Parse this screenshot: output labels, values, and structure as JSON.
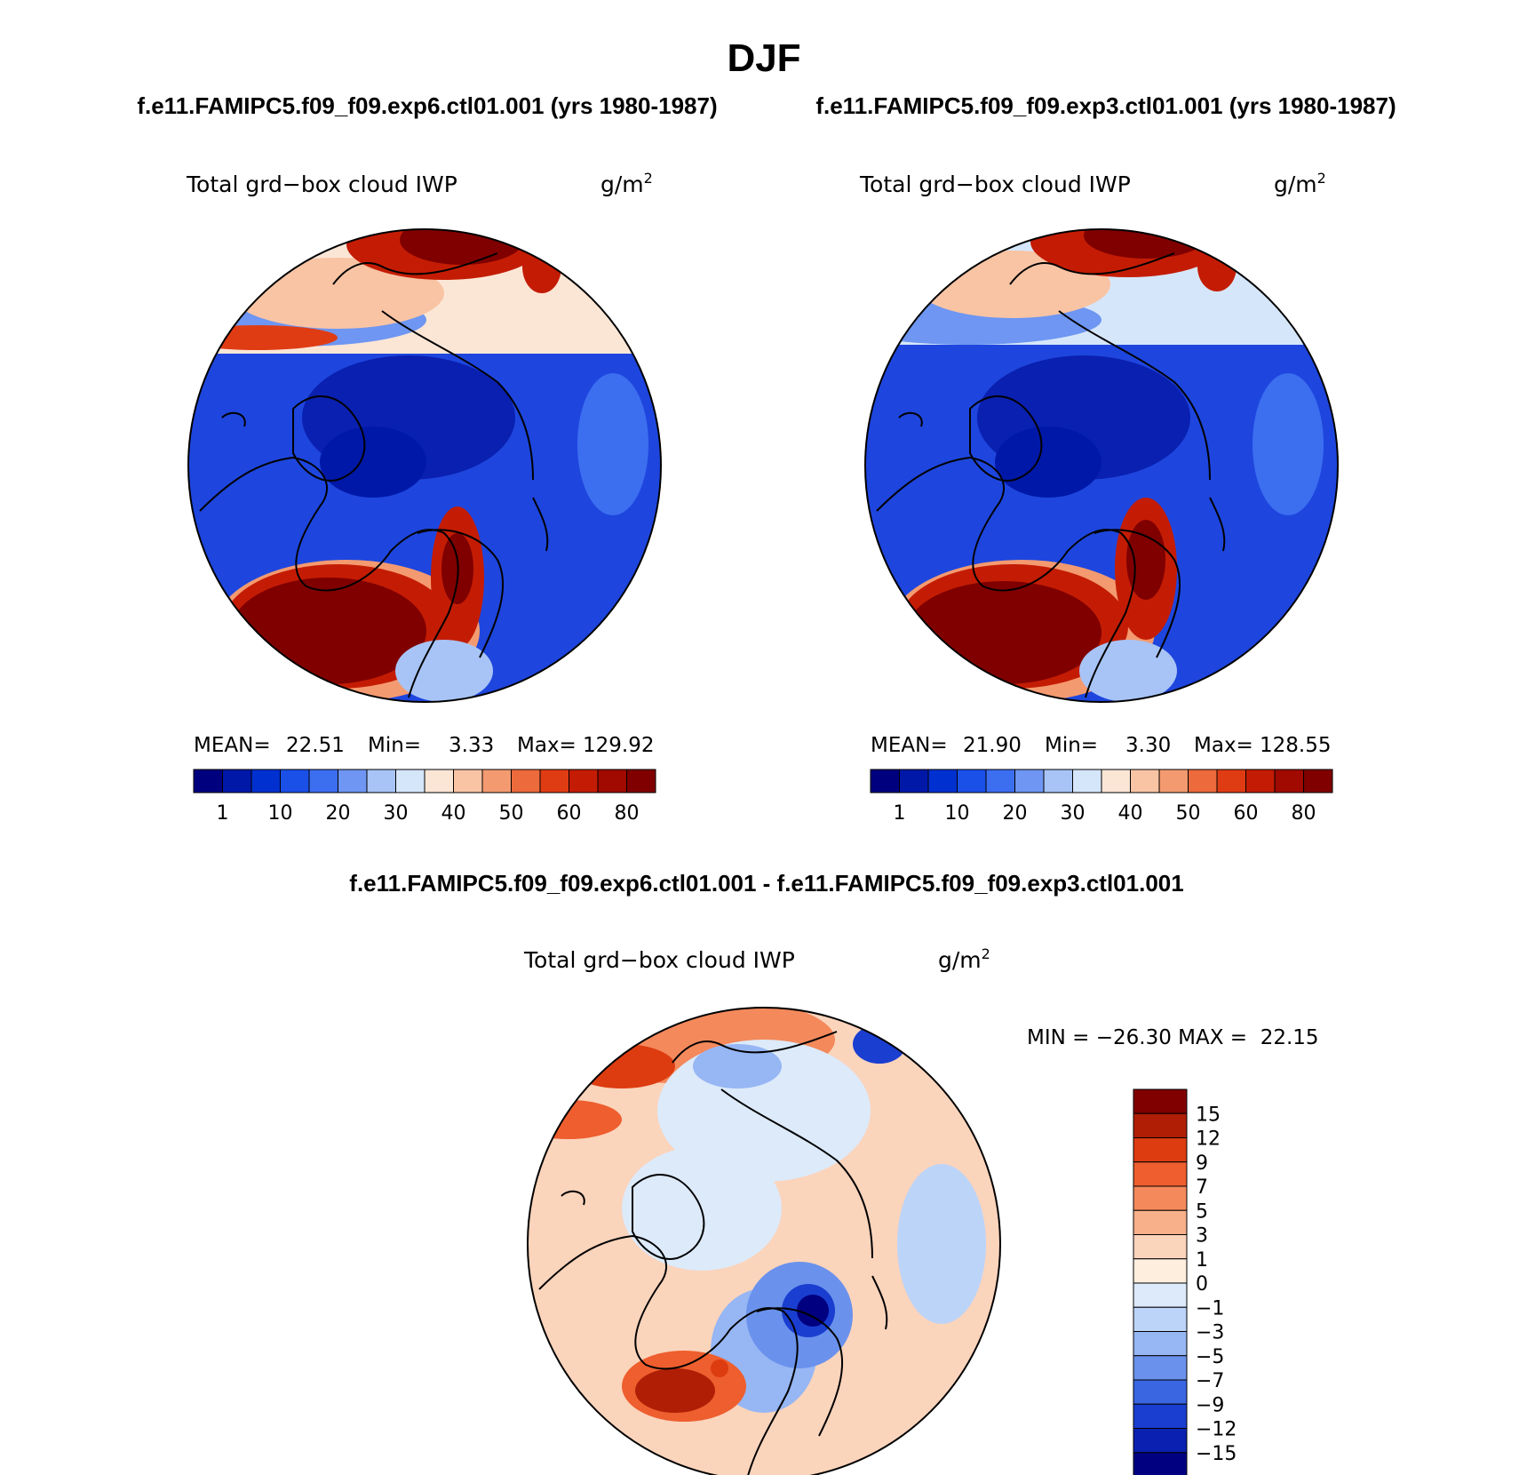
{
  "figure": {
    "season": "DJF",
    "diff_title": "f.e11.FAMIPC5.f09_f09.exp6.ctl01.001 - f.e11.FAMIPC5.f09_f09.exp3.ctl01.001"
  },
  "chart_data": [
    {
      "type": "heatmap",
      "projection": "north-polar-stereographic",
      "case_title": "f.e11.FAMIPC5.f09_f09.exp6.ctl01.001 (yrs 1980-1987)",
      "variable": "Total grd−box cloud IWP",
      "units": "g/m",
      "units_exp": "2",
      "stats": {
        "mean_label": "MEAN=",
        "mean": "22.51",
        "min_label": "Min=",
        "min": "3.33",
        "max_label": "Max=",
        "max": "129.92"
      },
      "levels": [
        "1",
        "10",
        "20",
        "30",
        "40",
        "50",
        "60",
        "80"
      ],
      "colors": [
        "#00007f",
        "#0018a8",
        "#0030d0",
        "#1a50e8",
        "#3c6ef0",
        "#6e96f2",
        "#a8c4f6",
        "#d6e6fa",
        "#fbe6d6",
        "#f8c4a4",
        "#f49a70",
        "#ec6a3c",
        "#e03c14",
        "#c41c04",
        "#a00a00",
        "#800000"
      ]
    },
    {
      "type": "heatmap",
      "projection": "north-polar-stereographic",
      "case_title": "f.e11.FAMIPC5.f09_f09.exp3.ctl01.001 (yrs 1980-1987)",
      "variable": "Total grd−box cloud IWP",
      "units": "g/m",
      "units_exp": "2",
      "stats": {
        "mean_label": "MEAN=",
        "mean": "21.90",
        "min_label": "Min=",
        "min": "3.30",
        "max_label": "Max=",
        "max": "128.55"
      },
      "levels": [
        "1",
        "10",
        "20",
        "30",
        "40",
        "50",
        "60",
        "80"
      ],
      "colors": [
        "#00007f",
        "#0018a8",
        "#0030d0",
        "#1a50e8",
        "#3c6ef0",
        "#6e96f2",
        "#a8c4f6",
        "#d6e6fa",
        "#fbe6d6",
        "#f8c4a4",
        "#f49a70",
        "#ec6a3c",
        "#e03c14",
        "#c41c04",
        "#a00a00",
        "#800000"
      ]
    },
    {
      "type": "heatmap",
      "projection": "north-polar-stereographic",
      "variable": "Total grd−box cloud IWP",
      "units": "g/m",
      "units_exp": "2",
      "stats_line": "MIN = −26.30 MAX =  22.15",
      "levels": [
        "15",
        "12",
        "9",
        "7",
        "5",
        "3",
        "1",
        "0",
        "−1",
        "−3",
        "−5",
        "−7",
        "−9",
        "−12",
        "−15"
      ],
      "colors": [
        "#800000",
        "#b01e06",
        "#dc3c10",
        "#ee5e2e",
        "#f4895c",
        "#f8b08a",
        "#fbd4bc",
        "#fdeede",
        "#dceafa",
        "#bcd4f8",
        "#96b6f4",
        "#6a92ec",
        "#3a66e2",
        "#1a3ed0",
        "#0a20b0",
        "#000080"
      ]
    }
  ]
}
